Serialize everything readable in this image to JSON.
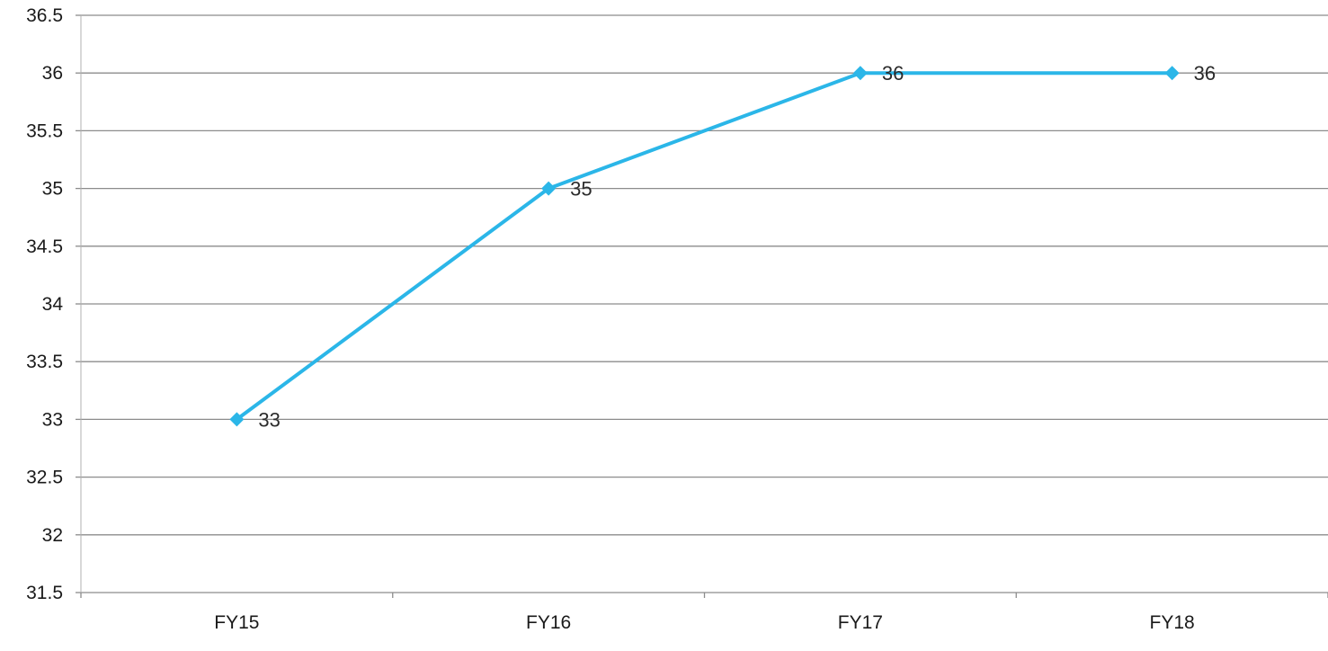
{
  "chart_data": {
    "type": "line",
    "categories": [
      "FY15",
      "FY16",
      "FY17",
      "FY18"
    ],
    "series": [
      {
        "values": [
          33,
          35,
          36,
          36
        ]
      }
    ],
    "ylim": [
      31.5,
      36.5
    ],
    "yticks": [
      "31.5",
      "32",
      "32.5",
      "33",
      "33.5",
      "34",
      "34.5",
      "35",
      "35.5",
      "36",
      "36.5"
    ],
    "data_labels": [
      "33",
      "35",
      "36",
      "36"
    ],
    "grid": true,
    "legend": "none",
    "line_color": "#2BB6E8",
    "grid_color": "#8c8c8c"
  }
}
